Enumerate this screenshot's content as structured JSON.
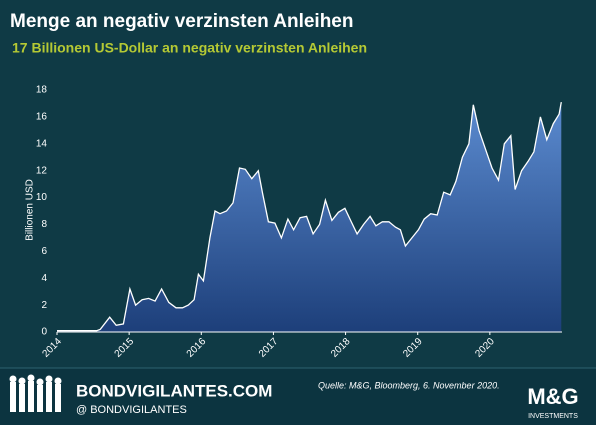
{
  "chart_data": {
    "type": "area",
    "title": "Menge an negativ verzinsten Anleihen",
    "subtitle": "17 Billionen US-Dollar an negativ verzinsten Anleihen",
    "y_label": "Billionen USD",
    "x": [
      2014.0,
      2014.55,
      2014.6,
      2014.73,
      2014.82,
      2014.92,
      2015.01,
      2015.09,
      2015.18,
      2015.27,
      2015.36,
      2015.45,
      2015.55,
      2015.65,
      2015.74,
      2015.82,
      2015.9,
      2015.96,
      2016.03,
      2016.12,
      2016.19,
      2016.26,
      2016.35,
      2016.44,
      2016.53,
      2016.61,
      2016.7,
      2016.79,
      2016.85,
      2016.93,
      2017.02,
      2017.11,
      2017.2,
      2017.28,
      2017.37,
      2017.46,
      2017.55,
      2017.64,
      2017.72,
      2017.81,
      2017.9,
      2017.99,
      2018.07,
      2018.16,
      2018.25,
      2018.34,
      2018.42,
      2018.51,
      2018.6,
      2018.69,
      2018.76,
      2018.83,
      2018.92,
      2019.01,
      2019.09,
      2019.18,
      2019.27,
      2019.36,
      2019.45,
      2019.53,
      2019.62,
      2019.71,
      2019.77,
      2019.85,
      2019.94,
      2020.03,
      2020.12,
      2020.2,
      2020.29,
      2020.35,
      2020.44,
      2020.53,
      2020.61,
      2020.7,
      2020.79,
      2020.88,
      2020.96,
      2020.99
    ],
    "series": [
      {
        "color": "#ffffff",
        "values": [
          0.1,
          0.1,
          0.2,
          1.1,
          0.5,
          0.6,
          3.2,
          2.0,
          2.4,
          2.5,
          2.3,
          3.2,
          2.2,
          1.8,
          1.8,
          2.0,
          2.4,
          4.3,
          3.8,
          7.0,
          9.0,
          8.8,
          9.0,
          9.6,
          12.2,
          12.1,
          11.4,
          12.0,
          10.3,
          8.2,
          8.1,
          7.0,
          8.4,
          7.6,
          8.5,
          8.6,
          7.3,
          8.0,
          9.8,
          8.3,
          8.9,
          9.2,
          8.3,
          7.3,
          8.0,
          8.6,
          7.9,
          8.2,
          8.2,
          7.8,
          7.6,
          6.4,
          7.0,
          7.6,
          8.4,
          8.8,
          8.7,
          10.4,
          10.2,
          11.2,
          13.0,
          14.0,
          16.9,
          15.0,
          13.6,
          12.2,
          11.3,
          14.0,
          14.6,
          10.6,
          12.0,
          12.7,
          13.4,
          16.0,
          14.3,
          15.5,
          16.2,
          17.1
        ]
      }
    ],
    "xlim": [
      2014,
      2021
    ],
    "xticks": [
      2014,
      2015,
      2016,
      2017,
      2018,
      2019,
      2020
    ],
    "ylim": [
      0,
      18
    ],
    "yticks": [
      0,
      2,
      4,
      6,
      8,
      10,
      12,
      14,
      16,
      18
    ]
  },
  "footer": {
    "site": "BONDVIGILANTES.COM",
    "handle": "@ BONDVIGILANTES",
    "source": "Quelle: M&G, Bloomberg, 6. November 2020.",
    "brand": "M&G",
    "brand_sub": "INVESTMENTS"
  }
}
